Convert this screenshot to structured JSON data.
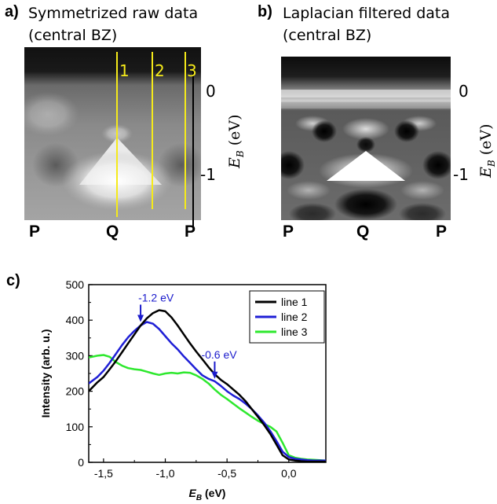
{
  "panel_a": {
    "letter": "a)",
    "title_line1": "Symmetrized raw data",
    "title_line2": "(central BZ)",
    "line_labels": [
      "1",
      "2",
      "3"
    ],
    "k_labels": [
      "P",
      "Q",
      "P"
    ],
    "energy_ticks": [
      "0",
      "-1"
    ],
    "axis_label_main": "E",
    "axis_label_sub": "B",
    "axis_label_unit": " (eV)"
  },
  "panel_b": {
    "letter": "b)",
    "title_line1": "Laplacian filtered data",
    "title_line2": "(central BZ)",
    "k_labels": [
      "P",
      "Q",
      "P"
    ],
    "energy_ticks": [
      "0",
      "-1"
    ],
    "axis_label_main": "E",
    "axis_label_sub": "B",
    "axis_label_unit": " (eV)"
  },
  "panel_c": {
    "letter": "c)",
    "annotations": [
      {
        "text": "-1.2 eV",
        "x": -1.2,
        "y": 395
      },
      {
        "text": "-0.6 eV",
        "x": -0.6,
        "y": 235
      }
    ]
  },
  "colors": {
    "line1": "#000000",
    "line2": "#1f1fd6",
    "line3": "#2ee82e",
    "annotation": "#1a1acc",
    "marker_line": "#f5ea1a"
  },
  "chart_data": {
    "type": "line",
    "xlabel_main": "E",
    "xlabel_sub": "B",
    "xlabel_unit": " (eV)",
    "ylabel": "Intensity (arb. u.)",
    "xlim": [
      -1.62,
      0.3
    ],
    "ylim": [
      0,
      500
    ],
    "xticks": [
      -1.5,
      -1.0,
      -0.5,
      0.0
    ],
    "xtick_labels": [
      "-1,5",
      "-1,0",
      "-0,5",
      "0,0"
    ],
    "yticks": [
      0,
      100,
      200,
      300,
      400,
      500
    ],
    "grid": false,
    "legend_position": "top-right",
    "series": [
      {
        "name": "line 1",
        "x": [
          -1.62,
          -1.55,
          -1.5,
          -1.45,
          -1.4,
          -1.35,
          -1.3,
          -1.25,
          -1.2,
          -1.15,
          -1.1,
          -1.05,
          -1.0,
          -0.95,
          -0.9,
          -0.85,
          -0.8,
          -0.75,
          -0.7,
          -0.65,
          -0.6,
          -0.55,
          -0.5,
          -0.45,
          -0.4,
          -0.35,
          -0.3,
          -0.25,
          -0.2,
          -0.15,
          -0.1,
          -0.05,
          0.0,
          0.05,
          0.1,
          0.15,
          0.2,
          0.25,
          0.3
        ],
        "y": [
          200,
          225,
          240,
          262,
          285,
          310,
          335,
          360,
          385,
          405,
          420,
          428,
          425,
          408,
          385,
          360,
          335,
          312,
          290,
          268,
          248,
          232,
          220,
          205,
          190,
          172,
          150,
          128,
          105,
          80,
          50,
          20,
          8,
          5,
          3,
          2,
          2,
          2,
          2
        ]
      },
      {
        "name": "line 2",
        "x": [
          -1.62,
          -1.55,
          -1.5,
          -1.45,
          -1.4,
          -1.35,
          -1.3,
          -1.25,
          -1.2,
          -1.15,
          -1.1,
          -1.05,
          -1.0,
          -0.95,
          -0.9,
          -0.85,
          -0.8,
          -0.75,
          -0.7,
          -0.65,
          -0.6,
          -0.55,
          -0.5,
          -0.45,
          -0.4,
          -0.35,
          -0.3,
          -0.25,
          -0.2,
          -0.15,
          -0.1,
          -0.05,
          0.0,
          0.05,
          0.1,
          0.15,
          0.2,
          0.25,
          0.3
        ],
        "y": [
          222,
          240,
          258,
          280,
          305,
          330,
          352,
          370,
          385,
          395,
          390,
          375,
          355,
          335,
          318,
          298,
          280,
          262,
          245,
          235,
          228,
          215,
          200,
          188,
          178,
          165,
          150,
          132,
          112,
          88,
          60,
          30,
          15,
          10,
          8,
          6,
          5,
          5,
          5
        ]
      },
      {
        "name": "line 3",
        "x": [
          -1.62,
          -1.55,
          -1.5,
          -1.45,
          -1.4,
          -1.35,
          -1.3,
          -1.25,
          -1.2,
          -1.15,
          -1.1,
          -1.05,
          -1.0,
          -0.95,
          -0.9,
          -0.85,
          -0.8,
          -0.75,
          -0.7,
          -0.65,
          -0.6,
          -0.55,
          -0.5,
          -0.45,
          -0.4,
          -0.35,
          -0.3,
          -0.25,
          -0.2,
          -0.15,
          -0.1,
          -0.05,
          0.0,
          0.05,
          0.1,
          0.15,
          0.2,
          0.25,
          0.3
        ],
        "y": [
          295,
          300,
          302,
          297,
          282,
          272,
          265,
          262,
          260,
          255,
          250,
          246,
          250,
          252,
          250,
          253,
          252,
          245,
          235,
          222,
          205,
          190,
          178,
          165,
          152,
          140,
          128,
          117,
          108,
          100,
          87,
          55,
          20,
          13,
          10,
          8,
          7,
          6,
          5
        ]
      }
    ]
  }
}
